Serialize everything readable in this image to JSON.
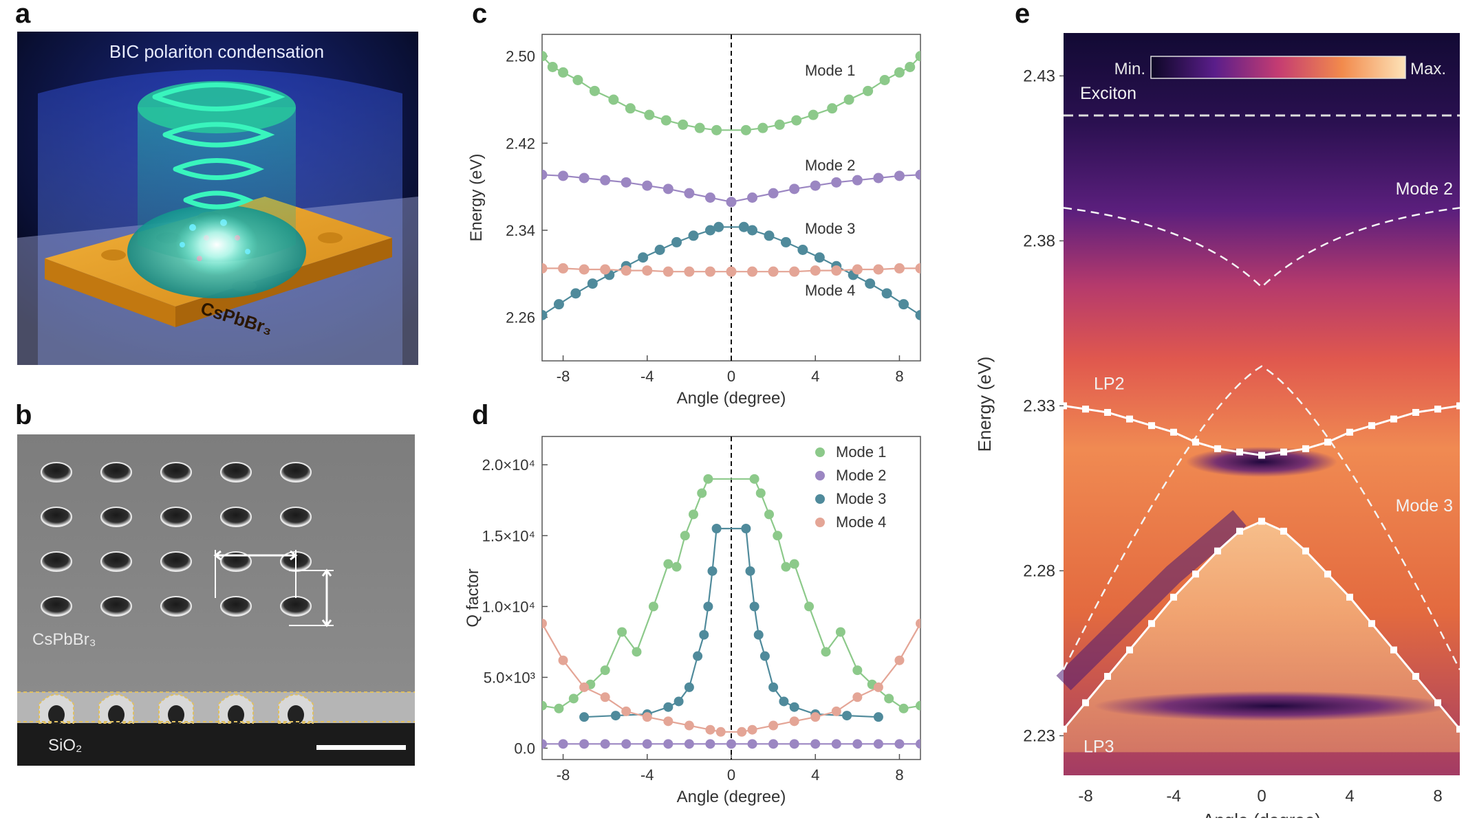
{
  "panels": {
    "a": {
      "letter": "a",
      "title": "BIC polariton condensation",
      "material_label": "CsPbBr₃"
    },
    "b": {
      "letter": "b",
      "material_label": "CsPbBr₃",
      "substrate_label": "SiO₂"
    },
    "c": {
      "letter": "c"
    },
    "d": {
      "letter": "d"
    },
    "e": {
      "letter": "e"
    }
  },
  "chart_data": [
    {
      "id": "c",
      "type": "scatter",
      "xlabel": "Angle (degree)",
      "ylabel": "Energy (eV)",
      "xlim": [
        -9,
        9
      ],
      "ylim": [
        2.22,
        2.52
      ],
      "xticks": [
        "-8",
        "-4",
        "0",
        "4",
        "8"
      ],
      "yticks": [
        "2.26",
        "2.34",
        "2.42",
        "2.50"
      ],
      "annotations": [
        "Mode 1",
        "Mode 2",
        "Mode 3",
        "Mode 4"
      ],
      "series": [
        {
          "name": "Mode 1",
          "color": "#8cc98a",
          "x": [
            -9,
            -8.5,
            -8,
            -7.3,
            -6.5,
            -5.6,
            -4.8,
            -3.9,
            -3.1,
            -2.3,
            -1.5,
            -0.7,
            0.7,
            1.5,
            2.3,
            3.1,
            3.9,
            4.8,
            5.6,
            6.5,
            7.3,
            8,
            8.5,
            9
          ],
          "y": [
            2.5,
            2.49,
            2.485,
            2.478,
            2.468,
            2.46,
            2.452,
            2.446,
            2.441,
            2.437,
            2.434,
            2.432,
            2.432,
            2.434,
            2.437,
            2.441,
            2.446,
            2.452,
            2.46,
            2.468,
            2.478,
            2.485,
            2.49,
            2.5
          ]
        },
        {
          "name": "Mode 2",
          "color": "#9b86c2",
          "x": [
            -9,
            -8,
            -7,
            -6,
            -5,
            -4,
            -3,
            -2,
            -1,
            0,
            1,
            2,
            3,
            4,
            5,
            6,
            7,
            8,
            9
          ],
          "y": [
            2.391,
            2.39,
            2.388,
            2.386,
            2.384,
            2.381,
            2.378,
            2.374,
            2.37,
            2.366,
            2.37,
            2.374,
            2.378,
            2.381,
            2.384,
            2.386,
            2.388,
            2.39,
            2.391
          ]
        },
        {
          "name": "Mode 3",
          "color": "#4f8a9b",
          "x": [
            -9,
            -8.2,
            -7.4,
            -6.6,
            -5.8,
            -5,
            -4.2,
            -3.4,
            -2.6,
            -1.8,
            -1,
            -0.6,
            0.6,
            1,
            1.8,
            2.6,
            3.4,
            4.2,
            5,
            5.8,
            6.6,
            7.4,
            8.2,
            9
          ],
          "y": [
            2.262,
            2.272,
            2.282,
            2.291,
            2.299,
            2.307,
            2.315,
            2.322,
            2.329,
            2.335,
            2.34,
            2.343,
            2.343,
            2.34,
            2.335,
            2.329,
            2.322,
            2.315,
            2.307,
            2.299,
            2.291,
            2.282,
            2.272,
            2.262
          ]
        },
        {
          "name": "Mode 4",
          "color": "#e4a596",
          "x": [
            -9,
            -8,
            -7,
            -6,
            -5,
            -4,
            -3,
            -2,
            -1,
            0,
            1,
            2,
            3,
            4,
            5,
            6,
            7,
            8,
            9
          ],
          "y": [
            2.305,
            2.305,
            2.304,
            2.304,
            2.303,
            2.303,
            2.302,
            2.302,
            2.302,
            2.302,
            2.302,
            2.302,
            2.302,
            2.303,
            2.303,
            2.304,
            2.304,
            2.305,
            2.305
          ]
        }
      ]
    },
    {
      "id": "d",
      "type": "scatter",
      "xlabel": "Angle (degree)",
      "ylabel": "Q factor",
      "xlim": [
        -9,
        9
      ],
      "ylim": [
        -800,
        22000
      ],
      "xticks": [
        "-8",
        "-4",
        "0",
        "4",
        "8"
      ],
      "yticks": [
        "0.0",
        "5.0×10³",
        "1.0×10⁴",
        "1.5×10⁴",
        "2.0×10⁴"
      ],
      "legend": {
        "position": "top-right"
      },
      "series": [
        {
          "name": "Mode 1",
          "color": "#8cc98a",
          "x": [
            -9,
            -8.2,
            -7.5,
            -6.7,
            -6,
            -5.2,
            -4.5,
            -3.7,
            -3,
            -2.6,
            -2.2,
            -1.8,
            -1.4,
            -1.1,
            1.1,
            1.4,
            1.8,
            2.2,
            2.6,
            3,
            3.7,
            4.5,
            5.2,
            6,
            6.7,
            7.5,
            8.2,
            9
          ],
          "y": [
            3000,
            2800,
            3500,
            4500,
            5500,
            8200,
            6800,
            10000,
            13000,
            12800,
            15000,
            16500,
            18000,
            19000,
            19000,
            18000,
            16500,
            15000,
            12800,
            13000,
            10000,
            6800,
            8200,
            5500,
            4500,
            3500,
            2800,
            3000
          ]
        },
        {
          "name": "Mode 2",
          "color": "#9b86c2",
          "x": [
            -9,
            -8,
            -7,
            -6,
            -5,
            -4,
            -3,
            -2,
            -1,
            0,
            1,
            2,
            3,
            4,
            5,
            6,
            7,
            8,
            9
          ],
          "y": [
            300,
            300,
            300,
            300,
            300,
            300,
            300,
            300,
            300,
            300,
            300,
            300,
            300,
            300,
            300,
            300,
            300,
            300,
            300
          ]
        },
        {
          "name": "Mode 3",
          "color": "#4f8a9b",
          "x": [
            -7,
            -5.5,
            -4,
            -3,
            -2.5,
            -2,
            -1.6,
            -1.3,
            -1.1,
            -0.9,
            -0.7,
            0.7,
            0.9,
            1.1,
            1.3,
            1.6,
            2,
            2.5,
            3,
            4,
            5.5,
            7
          ],
          "y": [
            2200,
            2300,
            2400,
            2900,
            3300,
            4300,
            6500,
            8000,
            10000,
            12500,
            15500,
            15500,
            12500,
            10000,
            8000,
            6500,
            4300,
            3300,
            2900,
            2400,
            2300,
            2200
          ]
        },
        {
          "name": "Mode 4",
          "color": "#e4a596",
          "x": [
            -9,
            -8,
            -7,
            -6,
            -5,
            -4,
            -3,
            -2,
            -1,
            -0.5,
            0.5,
            1,
            2,
            3,
            4,
            5,
            6,
            7,
            8,
            9
          ],
          "y": [
            8800,
            6200,
            4300,
            3600,
            2600,
            2200,
            1900,
            1600,
            1300,
            1150,
            1150,
            1300,
            1600,
            1900,
            2200,
            2600,
            3600,
            4300,
            6200,
            8800
          ]
        }
      ]
    },
    {
      "id": "e",
      "type": "heatmap",
      "xlabel": "Angle (degree)",
      "ylabel": "Energy (eV)",
      "xlim": [
        -9,
        9
      ],
      "ylim": [
        2.218,
        2.443
      ],
      "xticks": [
        "-8",
        "-4",
        "0",
        "4",
        "8"
      ],
      "yticks": [
        "2.23",
        "2.28",
        "2.33",
        "2.38",
        "2.43"
      ],
      "colorbar": {
        "min_label": "Min.",
        "max_label": "Max."
      },
      "annotations": [
        "Exciton",
        "Mode 2",
        "LP2",
        "Mode 3",
        "LP3"
      ],
      "exciton_energy": 2.418,
      "series": [
        {
          "name": "LP2",
          "x": [
            -9,
            -8,
            -7,
            -6,
            -5,
            -4,
            -3,
            -2,
            -1,
            0,
            1,
            2,
            3,
            4,
            5,
            6,
            7,
            8,
            9
          ],
          "y": [
            2.33,
            2.329,
            2.328,
            2.326,
            2.324,
            2.322,
            2.319,
            2.317,
            2.316,
            2.315,
            2.316,
            2.317,
            2.319,
            2.322,
            2.324,
            2.326,
            2.328,
            2.329,
            2.33
          ]
        },
        {
          "name": "LP3",
          "x": [
            -9,
            -8,
            -7,
            -6,
            -5,
            -4,
            -3,
            -2,
            -1,
            0,
            1,
            2,
            3,
            4,
            5,
            6,
            7,
            8,
            9
          ],
          "y": [
            2.232,
            2.24,
            2.248,
            2.256,
            2.264,
            2.272,
            2.279,
            2.286,
            2.292,
            2.295,
            2.292,
            2.286,
            2.279,
            2.272,
            2.264,
            2.256,
            2.248,
            2.24,
            2.232
          ]
        }
      ]
    }
  ]
}
